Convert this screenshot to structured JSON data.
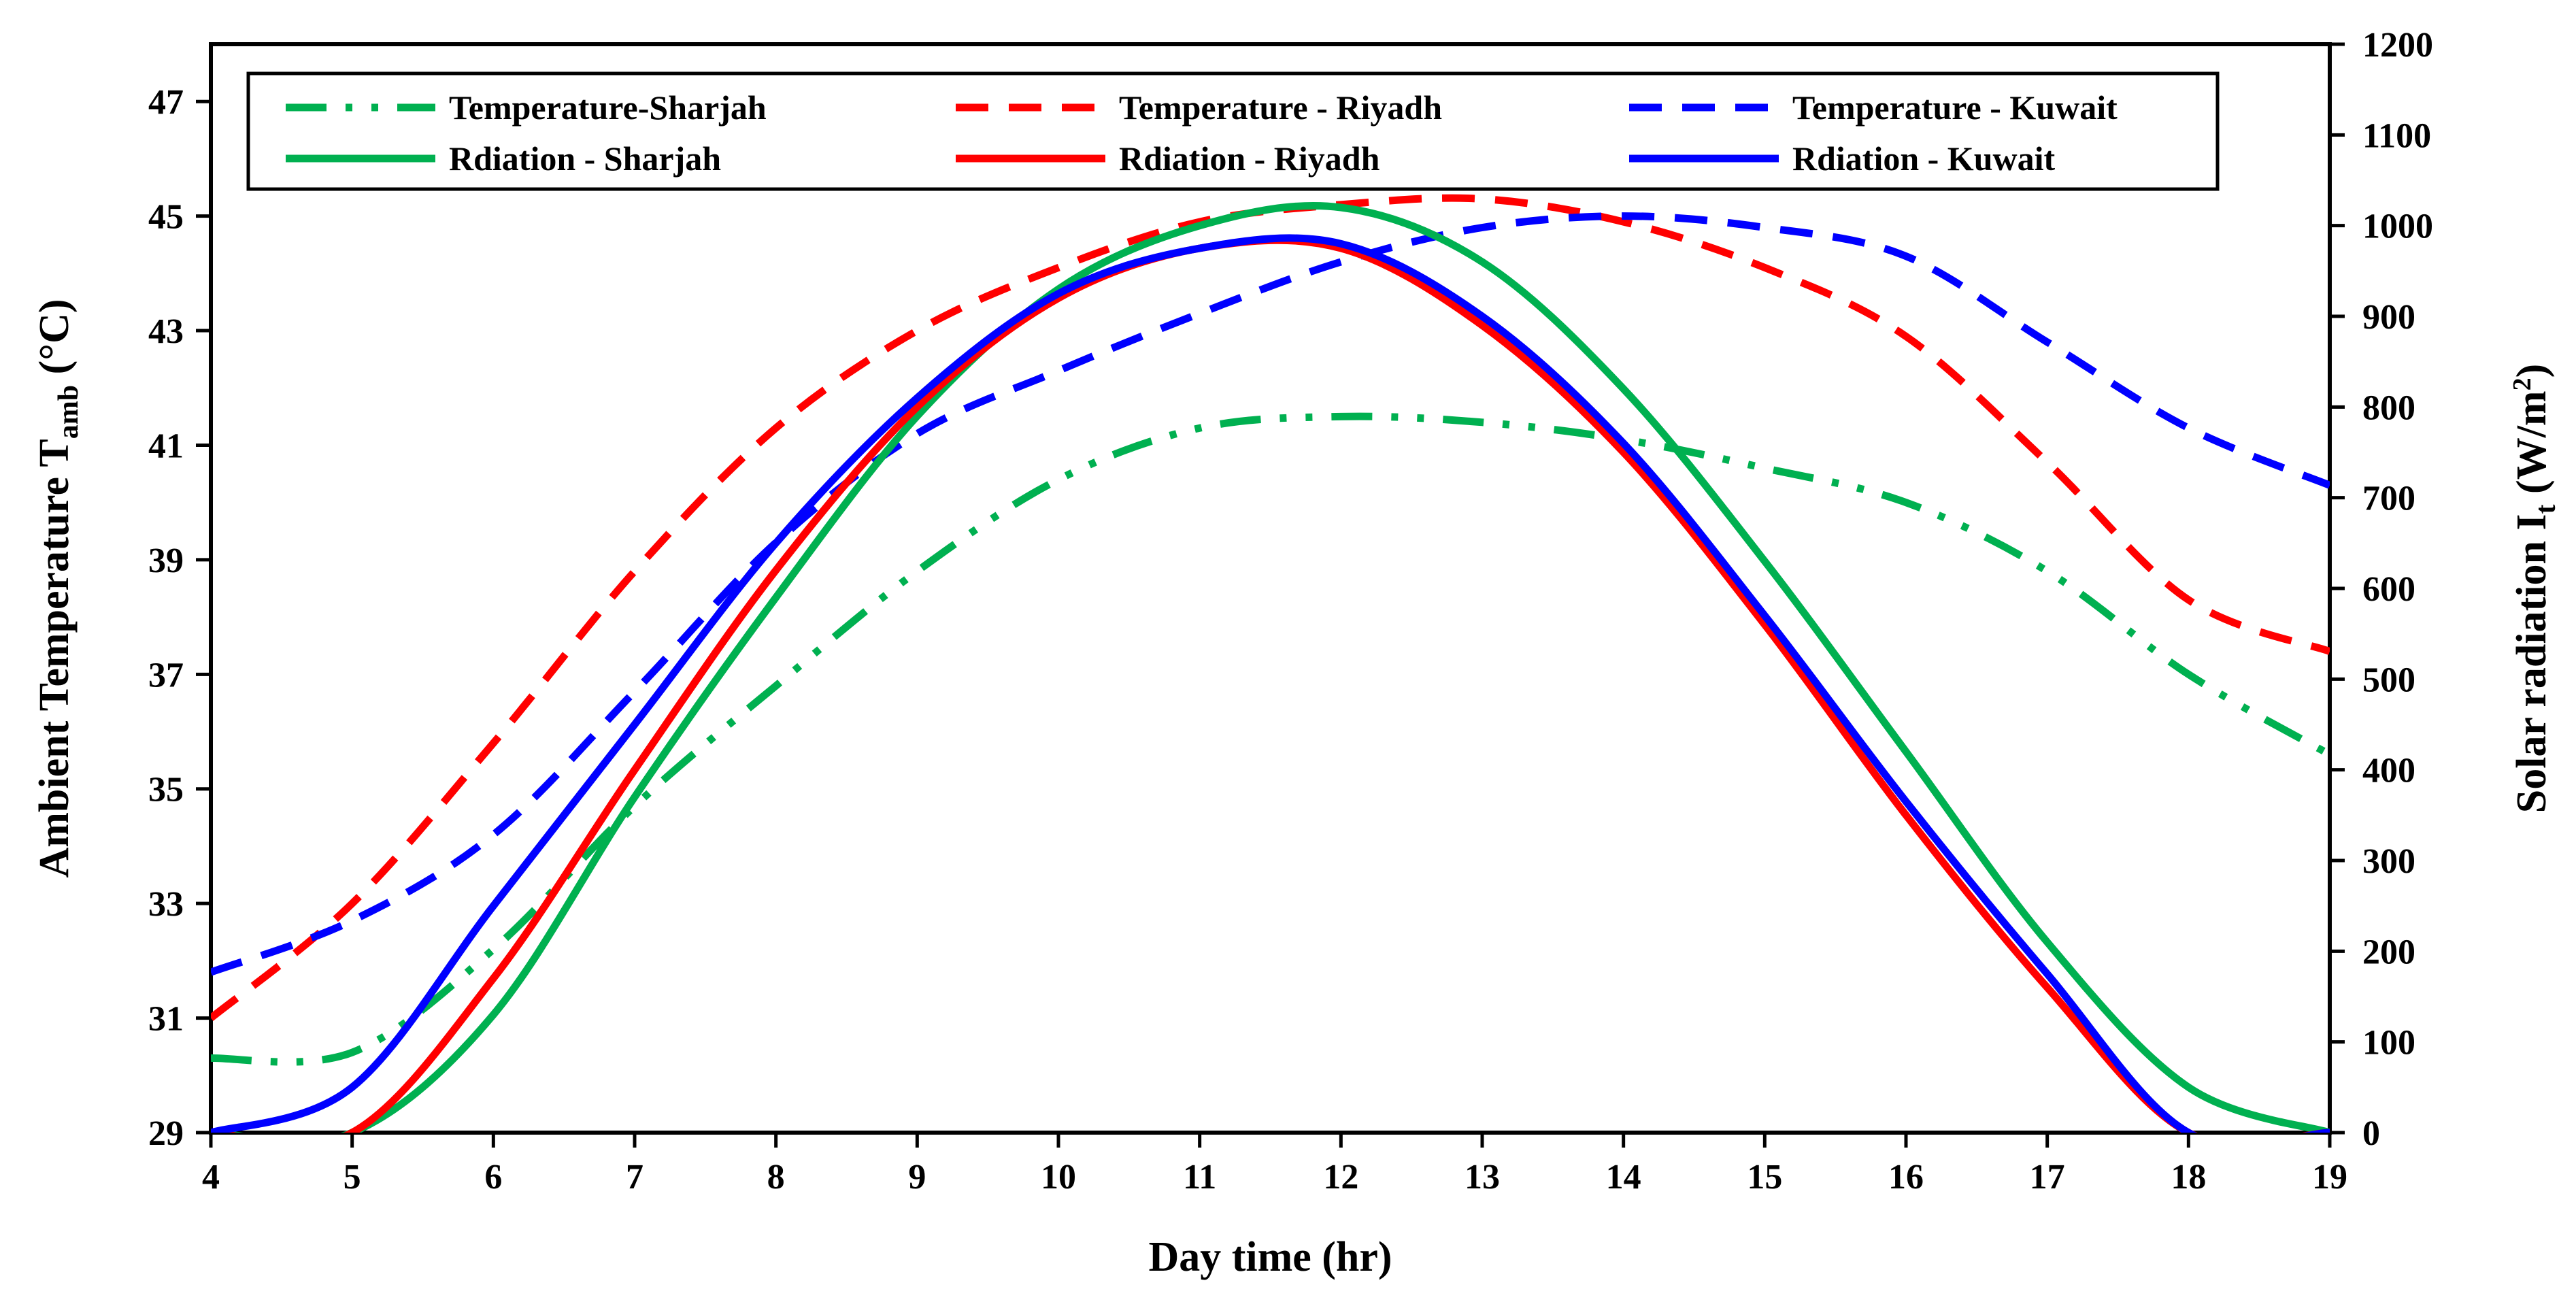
{
  "chart_data": {
    "type": "line",
    "title": "",
    "xlabel": "Day time (hr)",
    "ylabel_left": {
      "main": "Ambient  Temperature  T",
      "sub": "amb",
      "sup": "̣",
      "unit": "(°C)"
    },
    "ylabel_right": {
      "main": "Solar radiation  I",
      "sub": "t",
      "unit_pre": "(W/m",
      "sup": "2",
      "unit_post": ")"
    },
    "xlim": [
      4,
      19
    ],
    "ylim_left": [
      29,
      48
    ],
    "ylim_right": [
      0,
      1200
    ],
    "x_ticks": [
      4,
      5,
      6,
      7,
      8,
      9,
      10,
      11,
      12,
      13,
      14,
      15,
      16,
      17,
      18,
      19
    ],
    "y_left_ticks": [
      29,
      31,
      33,
      35,
      37,
      39,
      41,
      43,
      45,
      47
    ],
    "y_right_ticks": [
      0,
      100,
      200,
      300,
      400,
      500,
      600,
      700,
      800,
      900,
      1000,
      1100,
      1200
    ],
    "legend_position": "top",
    "series": [
      {
        "name": "Temperature-Sharjah",
        "axis": "left",
        "color": "#00b050",
        "style": "dashdotdot",
        "x": [
          4,
          5,
          6,
          7,
          8,
          9,
          10,
          11,
          12,
          13,
          14,
          15,
          16,
          17,
          18,
          19
        ],
        "values": [
          30.3,
          30.4,
          32.2,
          34.7,
          36.8,
          38.8,
          40.4,
          41.3,
          41.5,
          41.4,
          41.1,
          40.6,
          40.0,
          38.8,
          37.0,
          35.6
        ]
      },
      {
        "name": "Temperature - Riyadh",
        "axis": "left",
        "color": "#ff0000",
        "style": "dashed",
        "x": [
          4,
          5,
          6,
          7,
          8,
          9,
          10,
          11,
          12,
          13,
          14,
          15,
          16,
          17,
          18,
          19
        ],
        "values": [
          31.0,
          33.0,
          35.8,
          38.8,
          41.3,
          43.0,
          44.1,
          44.9,
          45.2,
          45.3,
          44.9,
          44.1,
          42.9,
          40.7,
          38.3,
          37.4
        ]
      },
      {
        "name": "Temperature - Kuwait",
        "axis": "left",
        "color": "#0000ff",
        "style": "dashed",
        "x": [
          4,
          5,
          6,
          7,
          8,
          9,
          10,
          11,
          12,
          13,
          14,
          15,
          16,
          17,
          18,
          19
        ],
        "values": [
          31.8,
          32.7,
          34.2,
          36.7,
          39.3,
          41.2,
          42.3,
          43.3,
          44.2,
          44.8,
          45.0,
          44.8,
          44.3,
          42.8,
          41.3,
          40.3
        ]
      },
      {
        "name": "Rdiation - Sharjah",
        "axis": "right",
        "color": "#00b050",
        "style": "solid",
        "x": [
          4,
          5,
          6,
          7,
          8,
          9,
          10,
          11,
          12,
          13,
          14,
          15,
          16,
          17,
          18,
          19
        ],
        "values": [
          0,
          0,
          130,
          370,
          590,
          790,
          930,
          1000,
          1020,
          960,
          820,
          630,
          420,
          210,
          50,
          0
        ]
      },
      {
        "name": "Rdiation - Riyadh",
        "axis": "right",
        "color": "#ff0000",
        "style": "solid",
        "x": [
          4,
          5,
          6,
          7,
          8,
          9,
          10,
          11,
          12,
          13,
          14,
          15,
          16,
          17,
          18,
          19
        ],
        "values": [
          0,
          0,
          170,
          400,
          620,
          800,
          920,
          975,
          975,
          890,
          750,
          560,
          350,
          160,
          0,
          0
        ]
      },
      {
        "name": "Rdiation - Kuwait",
        "axis": "right",
        "color": "#0000ff",
        "style": "solid",
        "x": [
          4,
          5,
          6,
          7,
          8,
          9,
          10,
          11,
          12,
          13,
          14,
          15,
          16,
          17,
          18,
          19
        ],
        "values": [
          0,
          50,
          250,
          450,
          650,
          810,
          925,
          975,
          980,
          900,
          760,
          570,
          365,
          175,
          0,
          0
        ]
      }
    ]
  }
}
